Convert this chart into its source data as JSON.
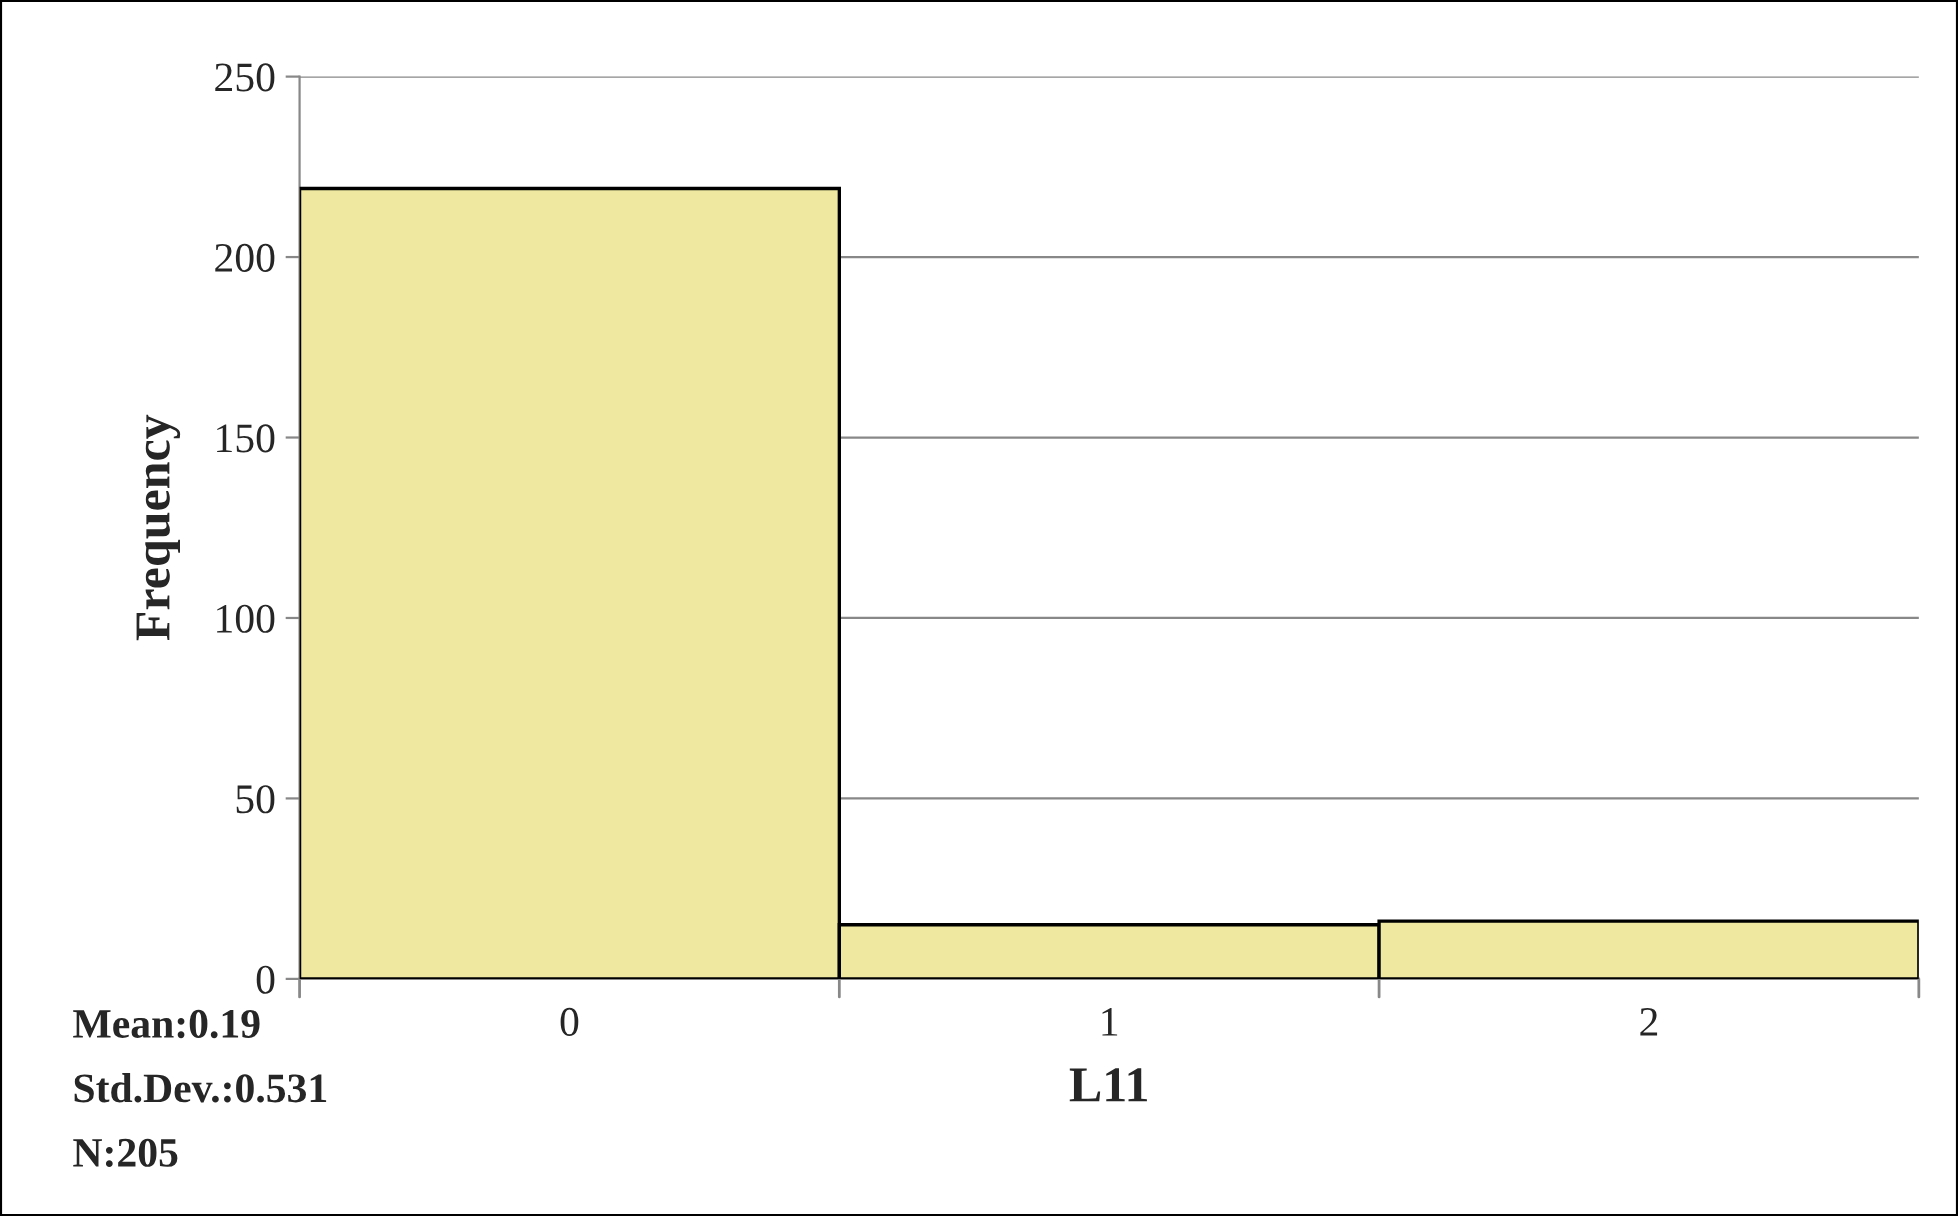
{
  "chart_data": {
    "type": "bar",
    "xlabel": "L11",
    "ylabel": "Frequency",
    "categories": [
      "0",
      "1",
      "2"
    ],
    "values": [
      219,
      15,
      16
    ],
    "color": "#eee8a0",
    "ylim": [
      0,
      250
    ],
    "yticks": [
      0,
      50,
      100,
      150,
      200,
      250
    ],
    "grid": "y",
    "legend": false,
    "annotations": [
      "Mean:0.19",
      "Std.Dev.:0.531",
      "N:205"
    ]
  }
}
